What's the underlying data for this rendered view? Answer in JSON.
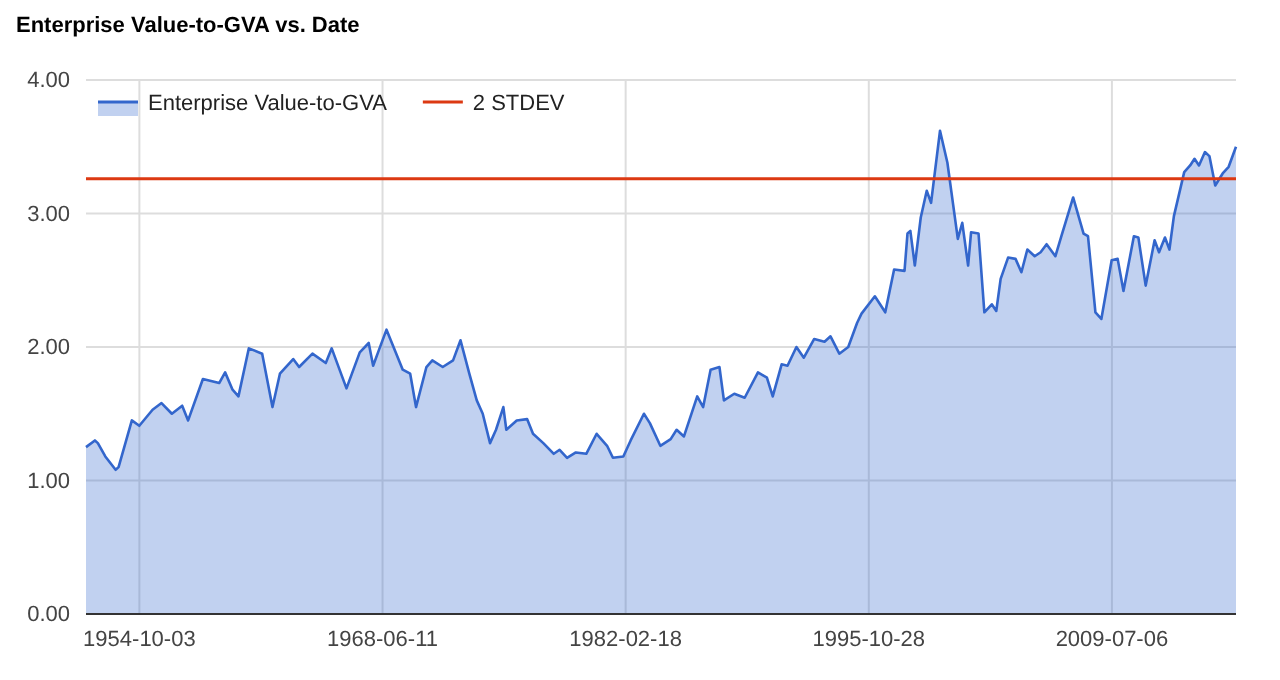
{
  "chart_data": {
    "type": "area",
    "title": "Enterprise Value-to-GVA vs. Date",
    "x": [
      "1951-10",
      "1952-04",
      "1952-06",
      "1952-11",
      "1953-06",
      "1953-08",
      "1954-05",
      "1954-10",
      "1955-07",
      "1956-01",
      "1956-08",
      "1957-03",
      "1957-07",
      "1958-05",
      "1959-04",
      "1959-08",
      "1960-01",
      "1960-05",
      "1960-12",
      "1961-09",
      "1962-04",
      "1962-09",
      "1963-06",
      "1963-10",
      "1964-07",
      "1965-04",
      "1965-08",
      "1966-06",
      "1967-03",
      "1967-09",
      "1967-12",
      "1968-04",
      "1968-09",
      "1969-08",
      "1970-01",
      "1970-05",
      "1970-12",
      "1971-04",
      "1971-11",
      "1972-06",
      "1972-11",
      "1973-05",
      "1973-10",
      "1974-02",
      "1974-07",
      "1974-11",
      "1975-04",
      "1975-06",
      "1976-01",
      "1976-08",
      "1976-12",
      "1977-07",
      "1978-02",
      "1978-06",
      "1978-11",
      "1979-05",
      "1979-12",
      "1980-07",
      "1981-02",
      "1981-06",
      "1982-01",
      "1982-06",
      "1983-03",
      "1983-07",
      "1984-02",
      "1984-09",
      "1985-01",
      "1985-06",
      "1986-03",
      "1986-07",
      "1986-12",
      "1987-06",
      "1987-09",
      "1988-04",
      "1988-11",
      "1989-08",
      "1990-02",
      "1990-06",
      "1990-12",
      "1991-04",
      "1991-10",
      "1992-03",
      "1992-10",
      "1993-05",
      "1993-09",
      "1994-03",
      "1994-09",
      "1995-03",
      "1995-06",
      "1996-03",
      "1996-10",
      "1997-04",
      "1997-11",
      "1998-01",
      "1998-03",
      "1998-06",
      "1998-10",
      "1999-02",
      "1999-05",
      "1999-11",
      "2000-04",
      "2000-11",
      "2001-02",
      "2001-06",
      "2001-08",
      "2002-01",
      "2002-05",
      "2002-10",
      "2003-01",
      "2003-04",
      "2003-09",
      "2004-02",
      "2004-06",
      "2004-10",
      "2005-03",
      "2005-07",
      "2005-11",
      "2006-05",
      "2006-09",
      "2007-05",
      "2007-12",
      "2008-03",
      "2008-08",
      "2008-12",
      "2009-07",
      "2009-11",
      "2010-03",
      "2010-10",
      "2011-01",
      "2011-06",
      "2011-12",
      "2012-03",
      "2012-07",
      "2012-10",
      "2013-01",
      "2013-08",
      "2013-12",
      "2014-03",
      "2014-06",
      "2014-10",
      "2015-01",
      "2015-05",
      "2015-10",
      "2016-02",
      "2016-07"
    ],
    "series": [
      {
        "name": "Enterprise Value-to-GVA",
        "color": "#3366cc",
        "values": [
          1.25,
          1.3,
          1.28,
          1.18,
          1.08,
          1.1,
          1.45,
          1.41,
          1.53,
          1.58,
          1.5,
          1.56,
          1.45,
          1.76,
          1.73,
          1.81,
          1.68,
          1.63,
          1.99,
          1.95,
          1.55,
          1.8,
          1.91,
          1.85,
          1.95,
          1.88,
          1.99,
          1.69,
          1.96,
          2.03,
          1.86,
          1.98,
          2.13,
          1.83,
          1.8,
          1.55,
          1.85,
          1.9,
          1.85,
          1.9,
          2.05,
          1.8,
          1.6,
          1.5,
          1.28,
          1.38,
          1.55,
          1.38,
          1.45,
          1.46,
          1.35,
          1.28,
          1.2,
          1.23,
          1.17,
          1.21,
          1.2,
          1.35,
          1.26,
          1.17,
          1.18,
          1.3,
          1.5,
          1.43,
          1.26,
          1.31,
          1.38,
          1.33,
          1.63,
          1.55,
          1.83,
          1.85,
          1.6,
          1.65,
          1.62,
          1.81,
          1.77,
          1.63,
          1.87,
          1.86,
          2.0,
          1.92,
          2.06,
          2.04,
          2.08,
          1.95,
          2.0,
          2.18,
          2.25,
          2.38,
          2.26,
          2.58,
          2.57,
          2.85,
          2.87,
          2.61,
          2.97,
          3.17,
          3.08,
          3.62,
          3.38,
          2.81,
          2.93,
          2.61,
          2.86,
          2.85,
          2.26,
          2.32,
          2.27,
          2.51,
          2.67,
          2.66,
          2.56,
          2.73,
          2.68,
          2.71,
          2.77,
          2.68,
          2.83,
          3.12,
          2.85,
          2.83,
          2.26,
          2.21,
          2.65,
          2.66,
          2.42,
          2.83,
          2.82,
          2.46,
          2.8,
          2.71,
          2.82,
          2.73,
          2.98,
          3.31,
          3.36,
          3.41,
          3.36,
          3.46,
          3.43,
          3.21,
          3.3,
          3.35,
          3.5
        ]
      }
    ],
    "ref_lines": [
      {
        "axis": "y",
        "value": 3.26,
        "label": "2 STDEV",
        "color": "#dc3912"
      }
    ],
    "xlim": [
      "1951-10",
      "2016-07"
    ],
    "xticks": [
      "1954-10-03",
      "1968-06-11",
      "1982-02-18",
      "1995-10-28",
      "2009-07-06"
    ],
    "ylim": [
      0,
      4
    ],
    "yticks": [
      {
        "value": 0,
        "label": "0.00"
      },
      {
        "value": 1,
        "label": "1.00"
      },
      {
        "value": 2,
        "label": "2.00"
      },
      {
        "value": 3,
        "label": "3.00"
      },
      {
        "value": 4,
        "label": "4.00"
      }
    ],
    "grid": true,
    "legend": "top left"
  }
}
